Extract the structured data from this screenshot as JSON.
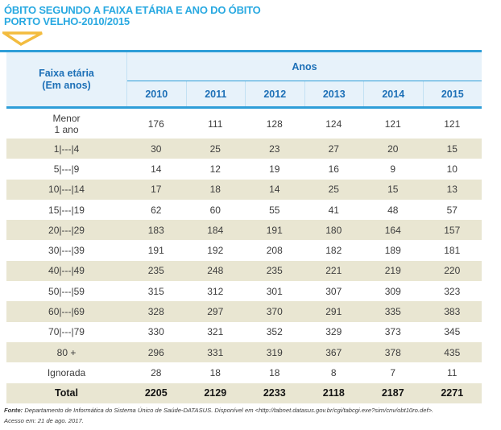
{
  "header": {
    "title_line1": "ÓBITO SEGUNDO A FAIXA ETÁRIA E ANO DO ÓBITO",
    "title_line2": "PORTO VELHO-2010/2015"
  },
  "table": {
    "corner_line1": "Faixa etária",
    "corner_line2": "(Em anos)",
    "group_header": "Anos",
    "years": [
      "2010",
      "2011",
      "2012",
      "2013",
      "2014",
      "2015"
    ],
    "rows": [
      {
        "label": "Menor\n1 ano",
        "values": [
          "176",
          "111",
          "128",
          "124",
          "121",
          "121"
        ]
      },
      {
        "label": "1|---|4",
        "values": [
          "30",
          "25",
          "23",
          "27",
          "20",
          "15"
        ]
      },
      {
        "label": "5|---|9",
        "values": [
          "14",
          "12",
          "19",
          "16",
          "9",
          "10"
        ]
      },
      {
        "label": "10|---|14",
        "values": [
          "17",
          "18",
          "14",
          "25",
          "15",
          "13"
        ]
      },
      {
        "label": "15|---|19",
        "values": [
          "62",
          "60",
          "55",
          "41",
          "48",
          "57"
        ]
      },
      {
        "label": "20|---|29",
        "values": [
          "183",
          "184",
          "191",
          "180",
          "164",
          "157"
        ]
      },
      {
        "label": "30|---|39",
        "values": [
          "191",
          "192",
          "208",
          "182",
          "189",
          "181"
        ]
      },
      {
        "label": "40|---|49",
        "values": [
          "235",
          "248",
          "235",
          "221",
          "219",
          "220"
        ]
      },
      {
        "label": "50|---|59",
        "values": [
          "315",
          "312",
          "301",
          "307",
          "309",
          "323"
        ]
      },
      {
        "label": "60|---|69",
        "values": [
          "328",
          "297",
          "370",
          "291",
          "335",
          "383"
        ]
      },
      {
        "label": "70|---|79",
        "values": [
          "330",
          "321",
          "352",
          "329",
          "373",
          "345"
        ]
      },
      {
        "label": "80 +",
        "values": [
          "296",
          "331",
          "319",
          "367",
          "378",
          "435"
        ]
      },
      {
        "label": "Ignorada",
        "values": [
          "28",
          "18",
          "18",
          "8",
          "7",
          "11"
        ]
      },
      {
        "label": "Total",
        "values": [
          "2205",
          "2129",
          "2233",
          "2118",
          "2187",
          "2271"
        ],
        "bold": true
      }
    ]
  },
  "footer": {
    "source_label": "Fonte:",
    "source_text": "Departamento de Informática do Sistema Único de Saúde-DATASUS. Disponível em <http://tabnet.datasus.gov.br/cgi/tabcgi.exe?sim/cnv/obt10ro.def>.",
    "access_text": "Acesso em: 21 de ago. 2017."
  },
  "colors": {
    "title_blue": "#29a9e1",
    "header_text_blue": "#1d70b7",
    "rule_blue": "#2e9ed8",
    "header_bg": "#e7f2fa",
    "stripe_beige": "#e9e6d2",
    "triangle_yellow": "#f3bc3f",
    "body_text": "#3d3d3d"
  }
}
